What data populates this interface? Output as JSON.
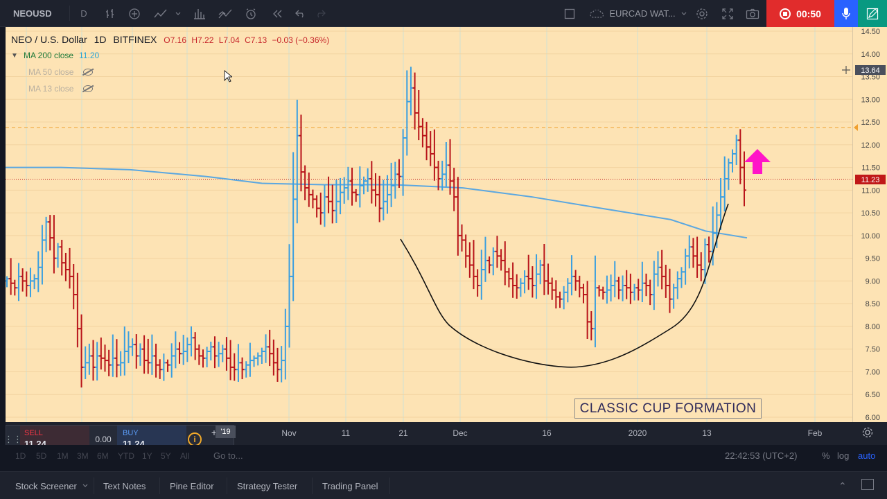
{
  "toolbar": {
    "symbol": "NEOUSD",
    "interval": "D",
    "compare": "EURCAD WAT...",
    "rec_time": "00:50"
  },
  "legend": {
    "title": "NEO / U.S. Dollar",
    "interval": "1D",
    "exchange": "BITFINEX",
    "open": "O7.16",
    "high": "H7.22",
    "low": "L7.04",
    "close": "C7.13",
    "change": "−0.03 (−0.36%)"
  },
  "indicators": [
    {
      "label": "MA 200 close",
      "value": "11.20",
      "visible": true
    },
    {
      "label": "MA 50 close",
      "visible": false
    },
    {
      "label": "MA 13 close",
      "visible": false
    }
  ],
  "annotation": "CLASSIC CUP FORMATION",
  "trade": {
    "sell_label": "SELL",
    "sell_price": "11.24",
    "spread": "0.00",
    "buy_label": "BUY",
    "buy_price": "11.24"
  },
  "range_buttons": [
    "1D",
    "5D",
    "1M",
    "3M",
    "6M",
    "YTD",
    "1Y",
    "5Y",
    "All"
  ],
  "goto": "Go to...",
  "clock": "22:42:53 (UTC+2)",
  "scale": {
    "percent": "%",
    "log": "log",
    "auto": "auto"
  },
  "bottom_tabs": [
    "Stock Screener",
    "Text Notes",
    "Pine Editor",
    "Strategy Tester",
    "Trading Panel"
  ],
  "colors": {
    "background": "#fde3b4",
    "up": "#3a9fe0",
    "down": "#b8141a",
    "ma200": "#5ba7e0",
    "arrow": "#ff14c8",
    "price_line": "#c01818"
  },
  "chart_data": {
    "type": "ohlc",
    "symbol": "NEO / U.S. Dollar",
    "interval": "1D",
    "exchange": "BITFINEX",
    "y_range": [
      6.0,
      14.5
    ],
    "y_ticks": [
      6.0,
      6.5,
      7.0,
      7.5,
      8.0,
      8.5,
      9.0,
      9.5,
      10.0,
      10.5,
      11.0,
      11.5,
      12.0,
      12.5,
      13.0,
      13.5,
      14.0,
      14.5
    ],
    "x_ticks": [
      "'19",
      "Nov",
      "11",
      "21",
      "Dec",
      "16",
      "2020",
      "13",
      "Feb"
    ],
    "current_price": 11.23,
    "crosshair_price": 13.64,
    "alert_level": 12.4,
    "ma200_value": 11.2,
    "bars_close": [
      9.05,
      8.95,
      8.85,
      9.1,
      9.0,
      8.9,
      9.0,
      9.05,
      9.3,
      9.9,
      10.3,
      9.95,
      9.5,
      9.75,
      9.4,
      9.25,
      9.1,
      8.7,
      7.95,
      7.1,
      7.2,
      7.35,
      7.1,
      7.35,
      7.3,
      7.25,
      7.15,
      7.3,
      7.15,
      7.2,
      7.45,
      7.55,
      7.6,
      7.35,
      7.5,
      7.25,
      7.2,
      7.35,
      7.15,
      7.05,
      7.2,
      7.15,
      7.35,
      7.5,
      7.4,
      7.45,
      7.6,
      7.75,
      7.5,
      7.35,
      7.3,
      7.45,
      7.55,
      7.35,
      7.4,
      7.5,
      7.3,
      7.1,
      7.05,
      7.2,
      7.05,
      7.15,
      7.25,
      7.3,
      7.35,
      7.45,
      7.55,
      7.4,
      7.2,
      7.05,
      7.25,
      8.0,
      9.1,
      10.8,
      12.2,
      11.4,
      11.05,
      10.9,
      10.8,
      10.6,
      10.5,
      10.85,
      10.75,
      10.55,
      10.75,
      10.95,
      11.05,
      11.2,
      10.95,
      10.9,
      11.1,
      11.2,
      11.25,
      11.0,
      10.9,
      10.6,
      10.75,
      10.9,
      11.1,
      11.35,
      11.3,
      12.15,
      12.95,
      13.25,
      12.7,
      12.4,
      12.2,
      11.95,
      11.8,
      11.5,
      11.25,
      11.35,
      11.55,
      11.2,
      10.85,
      10.0,
      9.9,
      9.55,
      9.35,
      9.1,
      8.9,
      9.25,
      9.45,
      9.35,
      9.65,
      9.55,
      9.45,
      9.2,
      9.05,
      8.9,
      8.85,
      8.95,
      9.1,
      9.05,
      8.9,
      9.15,
      9.35,
      9.0,
      8.95,
      8.8,
      8.65,
      8.6,
      8.75,
      8.95,
      9.1,
      9.0,
      8.85,
      8.7,
      8.1,
      7.95,
      8.85,
      8.8,
      8.75,
      8.8,
      8.9,
      9.0,
      8.8,
      8.9,
      8.85,
      8.75,
      8.85,
      8.8,
      8.95,
      8.9,
      8.7,
      9.15,
      9.3,
      9.1,
      8.9,
      8.6,
      8.85,
      9.05,
      9.2,
      9.55,
      9.75,
      9.55,
      9.35,
      9.25,
      9.8,
      9.65,
      10.05,
      10.45,
      10.85,
      11.25,
      11.6,
      11.8,
      12.1,
      11.5,
      11.0
    ]
  }
}
